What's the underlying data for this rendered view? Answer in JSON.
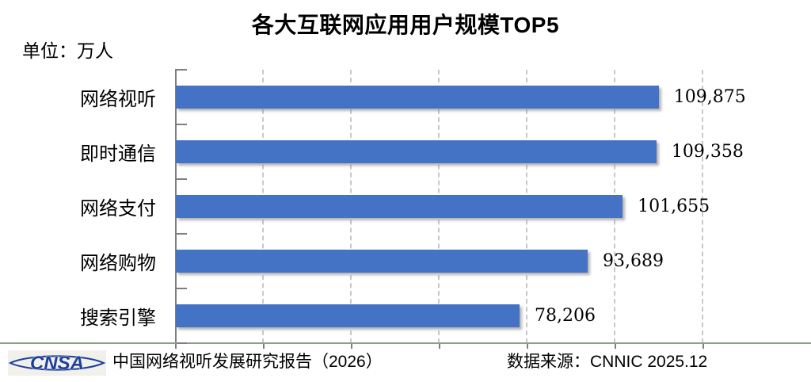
{
  "title": "各大互联网应用用户规模TOP5",
  "unit_label": "单位：万人",
  "chart_data": {
    "type": "bar",
    "orientation": "horizontal",
    "title": "各大互联网应用用户规模TOP5",
    "unit": "万人",
    "categories": [
      "网络视听",
      "即时通信",
      "网络支付",
      "网络购物",
      "搜索引擎"
    ],
    "values": [
      109875,
      109358,
      101655,
      93689,
      78206
    ],
    "value_labels": [
      "109,875",
      "109,358",
      "101,655",
      "93,689",
      "78,206"
    ],
    "xlim": [
      0,
      120000
    ],
    "tick_interval": 20000,
    "grid": true,
    "gridline_style": "dashed",
    "legend": "none",
    "bar_color": "#4472C4"
  },
  "colors": {
    "bar": "#4472C4",
    "axis": "#7f7f7f",
    "gridline": "#c9c9c9",
    "separator": "#87a287",
    "logo_blue": "#1d3f9c"
  },
  "footer": {
    "logo_text": "CNSA",
    "report_label": "中国网络视听发展研究报告（2026）",
    "source_label": "数据来源：CNNIC 2025.12"
  }
}
